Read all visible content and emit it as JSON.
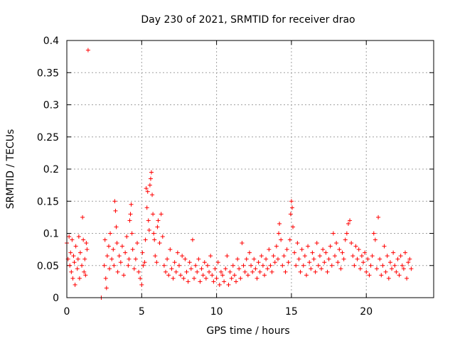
{
  "chart_data": {
    "type": "scatter",
    "title": "Day 230 of 2021, SRMTID for receiver drao",
    "xlabel": "GPS time / hours",
    "ylabel": "SRMTID / TECUs",
    "xlim": [
      0,
      24.5
    ],
    "ylim": [
      0,
      0.4
    ],
    "grid": true,
    "marker": "+",
    "marker_color": "#ff0000",
    "x_ticks": [
      0,
      5,
      10,
      15,
      20
    ],
    "x_tick_labels": [
      "0",
      "5",
      "10",
      "15",
      "20"
    ],
    "y_ticks": [
      0,
      0.05,
      0.1,
      0.15,
      0.2,
      0.25,
      0.3,
      0.35,
      0.4
    ],
    "y_tick_labels": [
      "0",
      "0.05",
      "0.1",
      "0.15",
      "0.2",
      "0.25",
      "0.3",
      "0.35",
      "0.4"
    ],
    "series": [
      {
        "name": "SRMTID",
        "points": [
          [
            0.0,
            0.085
          ],
          [
            0.08,
            0.06
          ],
          [
            0.15,
            0.095
          ],
          [
            0.2,
            0.05
          ],
          [
            0.25,
            0.07
          ],
          [
            0.3,
            0.04
          ],
          [
            0.35,
            0.09
          ],
          [
            0.4,
            0.03
          ],
          [
            0.45,
            0.065
          ],
          [
            0.5,
            0.055
          ],
          [
            0.55,
            0.02
          ],
          [
            0.6,
            0.08
          ],
          [
            0.7,
            0.045
          ],
          [
            0.75,
            0.06
          ],
          [
            0.8,
            0.095
          ],
          [
            0.85,
            0.03
          ],
          [
            0.9,
            0.07
          ],
          [
            1.0,
            0.05
          ],
          [
            1.05,
            0.125
          ],
          [
            1.1,
            0.09
          ],
          [
            1.15,
            0.04
          ],
          [
            1.2,
            0.06
          ],
          [
            1.25,
            0.035
          ],
          [
            1.3,
            0.085
          ],
          [
            1.35,
            0.075
          ],
          [
            1.42,
            0.385
          ],
          [
            2.3,
            0.0
          ],
          [
            2.5,
            0.05
          ],
          [
            2.55,
            0.09
          ],
          [
            2.6,
            0.03
          ],
          [
            2.65,
            0.015
          ],
          [
            2.7,
            0.065
          ],
          [
            2.8,
            0.08
          ],
          [
            2.85,
            0.045
          ],
          [
            2.9,
            0.1
          ],
          [
            3.0,
            0.06
          ],
          [
            3.1,
            0.075
          ],
          [
            3.15,
            0.05
          ],
          [
            3.2,
            0.15
          ],
          [
            3.25,
            0.135
          ],
          [
            3.3,
            0.11
          ],
          [
            3.35,
            0.085
          ],
          [
            3.4,
            0.04
          ],
          [
            3.5,
            0.065
          ],
          [
            3.6,
            0.055
          ],
          [
            3.7,
            0.08
          ],
          [
            3.8,
            0.035
          ],
          [
            3.9,
            0.07
          ],
          [
            4.0,
            0.095
          ],
          [
            4.1,
            0.05
          ],
          [
            4.15,
            0.06
          ],
          [
            4.2,
            0.12
          ],
          [
            4.25,
            0.13
          ],
          [
            4.3,
            0.145
          ],
          [
            4.35,
            0.1
          ],
          [
            4.4,
            0.075
          ],
          [
            4.5,
            0.045
          ],
          [
            4.6,
            0.06
          ],
          [
            4.7,
            0.085
          ],
          [
            4.8,
            0.04
          ],
          [
            4.9,
            0.03
          ],
          [
            5.0,
            0.02
          ],
          [
            5.05,
            0.07
          ],
          [
            5.1,
            0.05
          ],
          [
            5.2,
            0.055
          ],
          [
            5.25,
            0.09
          ],
          [
            5.3,
            0.17
          ],
          [
            5.35,
            0.14
          ],
          [
            5.4,
            0.165
          ],
          [
            5.45,
            0.12
          ],
          [
            5.5,
            0.105
          ],
          [
            5.55,
            0.175
          ],
          [
            5.6,
            0.185
          ],
          [
            5.65,
            0.195
          ],
          [
            5.7,
            0.16
          ],
          [
            5.75,
            0.13
          ],
          [
            5.8,
            0.1
          ],
          [
            5.85,
            0.09
          ],
          [
            5.9,
            0.065
          ],
          [
            6.0,
            0.055
          ],
          [
            6.05,
            0.11
          ],
          [
            6.1,
            0.12
          ],
          [
            6.2,
            0.085
          ],
          [
            6.3,
            0.13
          ],
          [
            6.4,
            0.095
          ],
          [
            6.5,
            0.05
          ],
          [
            6.6,
            0.04
          ],
          [
            6.7,
            0.06
          ],
          [
            6.8,
            0.035
          ],
          [
            6.9,
            0.075
          ],
          [
            7.0,
            0.045
          ],
          [
            7.1,
            0.03
          ],
          [
            7.2,
            0.055
          ],
          [
            7.3,
            0.04
          ],
          [
            7.4,
            0.07
          ],
          [
            7.5,
            0.05
          ],
          [
            7.6,
            0.035
          ],
          [
            7.7,
            0.065
          ],
          [
            7.8,
            0.03
          ],
          [
            7.9,
            0.06
          ],
          [
            8.0,
            0.04
          ],
          [
            8.1,
            0.025
          ],
          [
            8.2,
            0.055
          ],
          [
            8.3,
            0.045
          ],
          [
            8.4,
            0.09
          ],
          [
            8.5,
            0.03
          ],
          [
            8.6,
            0.05
          ],
          [
            8.7,
            0.04
          ],
          [
            8.8,
            0.06
          ],
          [
            8.9,
            0.025
          ],
          [
            9.0,
            0.045
          ],
          [
            9.1,
            0.035
          ],
          [
            9.2,
            0.055
          ],
          [
            9.3,
            0.03
          ],
          [
            9.4,
            0.05
          ],
          [
            9.5,
            0.04
          ],
          [
            9.6,
            0.065
          ],
          [
            9.7,
            0.035
          ],
          [
            9.8,
            0.025
          ],
          [
            9.9,
            0.045
          ],
          [
            10.0,
            0.03
          ],
          [
            10.1,
            0.055
          ],
          [
            10.2,
            0.02
          ],
          [
            10.3,
            0.04
          ],
          [
            10.4,
            0.035
          ],
          [
            10.5,
            0.025
          ],
          [
            10.6,
            0.045
          ],
          [
            10.7,
            0.065
          ],
          [
            10.8,
            0.02
          ],
          [
            10.9,
            0.04
          ],
          [
            11.0,
            0.03
          ],
          [
            11.1,
            0.05
          ],
          [
            11.2,
            0.035
          ],
          [
            11.3,
            0.025
          ],
          [
            11.4,
            0.06
          ],
          [
            11.5,
            0.045
          ],
          [
            11.6,
            0.03
          ],
          [
            11.7,
            0.085
          ],
          [
            11.8,
            0.05
          ],
          [
            11.9,
            0.04
          ],
          [
            12.0,
            0.06
          ],
          [
            12.1,
            0.035
          ],
          [
            12.2,
            0.07
          ],
          [
            12.3,
            0.05
          ],
          [
            12.4,
            0.04
          ],
          [
            12.5,
            0.06
          ],
          [
            12.6,
            0.045
          ],
          [
            12.7,
            0.03
          ],
          [
            12.8,
            0.055
          ],
          [
            12.9,
            0.04
          ],
          [
            13.0,
            0.065
          ],
          [
            13.1,
            0.05
          ],
          [
            13.2,
            0.035
          ],
          [
            13.3,
            0.06
          ],
          [
            13.4,
            0.045
          ],
          [
            13.5,
            0.075
          ],
          [
            13.6,
            0.05
          ],
          [
            13.7,
            0.04
          ],
          [
            13.8,
            0.065
          ],
          [
            13.9,
            0.055
          ],
          [
            14.0,
            0.08
          ],
          [
            14.1,
            0.06
          ],
          [
            14.15,
            0.1
          ],
          [
            14.2,
            0.115
          ],
          [
            14.3,
            0.09
          ],
          [
            14.4,
            0.05
          ],
          [
            14.5,
            0.065
          ],
          [
            14.6,
            0.04
          ],
          [
            14.7,
            0.075
          ],
          [
            14.8,
            0.055
          ],
          [
            14.9,
            0.09
          ],
          [
            14.95,
            0.13
          ],
          [
            15.0,
            0.15
          ],
          [
            15.05,
            0.14
          ],
          [
            15.1,
            0.11
          ],
          [
            15.2,
            0.07
          ],
          [
            15.3,
            0.05
          ],
          [
            15.4,
            0.085
          ],
          [
            15.5,
            0.06
          ],
          [
            15.6,
            0.04
          ],
          [
            15.7,
            0.075
          ],
          [
            15.8,
            0.05
          ],
          [
            15.9,
            0.065
          ],
          [
            16.0,
            0.035
          ],
          [
            16.1,
            0.08
          ],
          [
            16.2,
            0.055
          ],
          [
            16.3,
            0.045
          ],
          [
            16.4,
            0.07
          ],
          [
            16.5,
            0.06
          ],
          [
            16.6,
            0.04
          ],
          [
            16.7,
            0.085
          ],
          [
            16.8,
            0.05
          ],
          [
            16.9,
            0.065
          ],
          [
            17.0,
            0.045
          ],
          [
            17.1,
            0.075
          ],
          [
            17.2,
            0.055
          ],
          [
            17.3,
            0.07
          ],
          [
            17.4,
            0.04
          ],
          [
            17.5,
            0.06
          ],
          [
            17.6,
            0.08
          ],
          [
            17.7,
            0.05
          ],
          [
            17.8,
            0.1
          ],
          [
            17.9,
            0.065
          ],
          [
            18.0,
            0.085
          ],
          [
            18.1,
            0.055
          ],
          [
            18.2,
            0.075
          ],
          [
            18.3,
            0.045
          ],
          [
            18.4,
            0.07
          ],
          [
            18.5,
            0.06
          ],
          [
            18.6,
            0.09
          ],
          [
            18.7,
            0.1
          ],
          [
            18.8,
            0.115
          ],
          [
            18.9,
            0.12
          ],
          [
            19.0,
            0.085
          ],
          [
            19.1,
            0.065
          ],
          [
            19.2,
            0.05
          ],
          [
            19.3,
            0.08
          ],
          [
            19.4,
            0.06
          ],
          [
            19.5,
            0.075
          ],
          [
            19.6,
            0.045
          ],
          [
            19.7,
            0.065
          ],
          [
            19.8,
            0.055
          ],
          [
            19.9,
            0.07
          ],
          [
            20.0,
            0.04
          ],
          [
            20.1,
            0.06
          ],
          [
            20.2,
            0.035
          ],
          [
            20.3,
            0.05
          ],
          [
            20.4,
            0.065
          ],
          [
            20.5,
            0.1
          ],
          [
            20.6,
            0.09
          ],
          [
            20.7,
            0.045
          ],
          [
            20.8,
            0.125
          ],
          [
            20.9,
            0.06
          ],
          [
            21.0,
            0.035
          ],
          [
            21.1,
            0.05
          ],
          [
            21.2,
            0.08
          ],
          [
            21.3,
            0.04
          ],
          [
            21.4,
            0.065
          ],
          [
            21.5,
            0.03
          ],
          [
            21.6,
            0.055
          ],
          [
            21.7,
            0.045
          ],
          [
            21.8,
            0.07
          ],
          [
            21.9,
            0.05
          ],
          [
            22.0,
            0.04
          ],
          [
            22.1,
            0.06
          ],
          [
            22.2,
            0.035
          ],
          [
            22.3,
            0.065
          ],
          [
            22.4,
            0.05
          ],
          [
            22.5,
            0.045
          ],
          [
            22.6,
            0.07
          ],
          [
            22.7,
            0.03
          ],
          [
            22.8,
            0.055
          ],
          [
            22.9,
            0.06
          ],
          [
            23.0,
            0.045
          ]
        ]
      }
    ]
  }
}
